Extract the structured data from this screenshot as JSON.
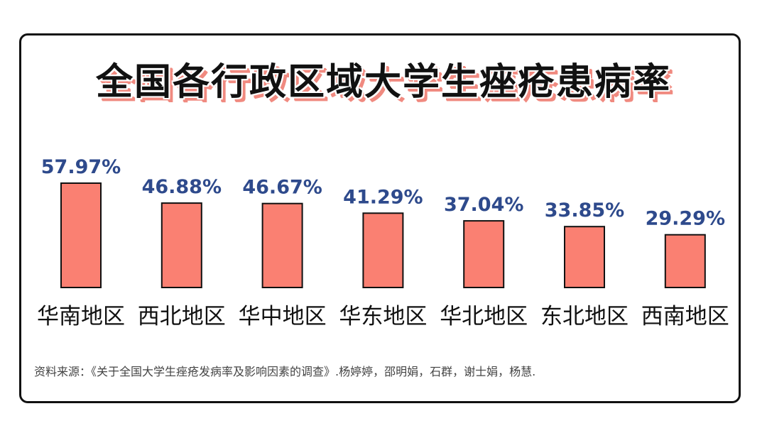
{
  "title": "全国各行政区域大学生痤疮患病率",
  "source": "资料来源：《关于全国大学生痤疮发病率及影响因素的调查》.杨婷婷，邵明娟，石群，谢士娟，杨慧.",
  "colors": {
    "bar_fill": "#fa8072",
    "bar_stroke": "#111111",
    "value_label": "#2e4a8c",
    "category_label": "#111111",
    "title_shadow": "#f08a80"
  },
  "chart_data": {
    "type": "bar",
    "title": "全国各行政区域大学生痤疮患病率",
    "xlabel": "",
    "ylabel": "",
    "categories": [
      "华南地区",
      "西北地区",
      "华中地区",
      "华东地区",
      "华北地区",
      "东北地区",
      "西南地区"
    ],
    "values": [
      57.97,
      46.88,
      46.67,
      41.29,
      37.04,
      33.85,
      29.29
    ],
    "value_labels": [
      "57.97%",
      "46.88%",
      "46.67%",
      "41.29%",
      "37.04%",
      "33.85%",
      "29.29%"
    ],
    "ylim": [
      0,
      100
    ],
    "grid": false,
    "legend": "none"
  }
}
